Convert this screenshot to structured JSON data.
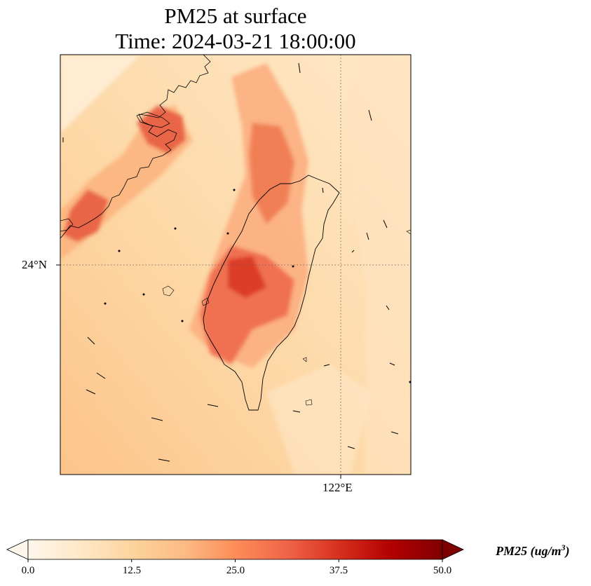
{
  "title": {
    "line1": "PM25 at surface",
    "line2": "Time: 2024-03-21 18:00:00"
  },
  "axes": {
    "lat_label": "24°N",
    "lon_label": "122°E"
  },
  "colorbar": {
    "label_main": "PM25 (ug/m",
    "label_sup": "3",
    "label_end": ")",
    "ticks": [
      "0.0",
      "12.5",
      "25.0",
      "37.5",
      "50.0"
    ],
    "vmin": 0,
    "vmax": 50,
    "colormap": "OrRd",
    "extend": "both"
  },
  "colors": {
    "low": "#fff7ec",
    "mid": "#fdd49e",
    "high": "#ef6548",
    "max": "#7f0000"
  }
}
